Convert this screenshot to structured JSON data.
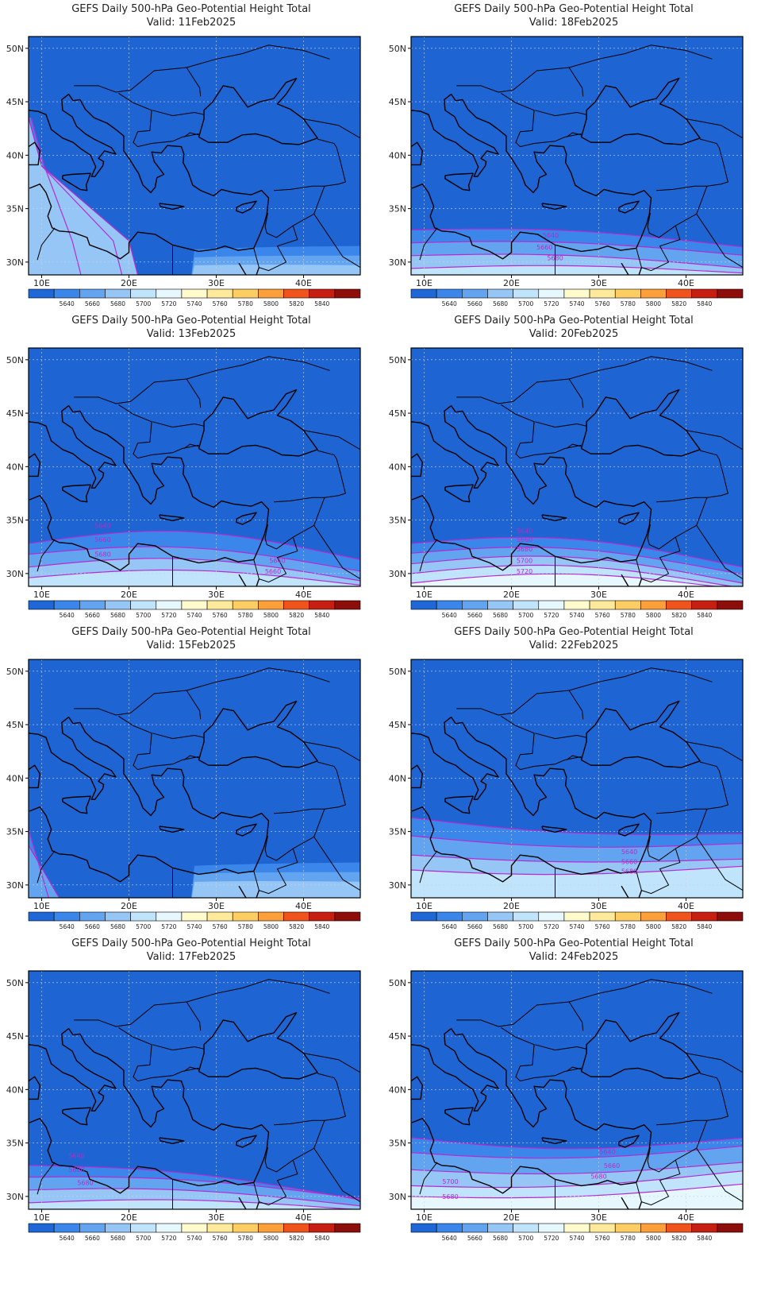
{
  "title": "GEFS Daily 500-hPa Geo-Potential Height Total",
  "valid_prefix": "Valid:",
  "lat_labels": [
    "50N",
    "45N",
    "40N",
    "35N",
    "30N"
  ],
  "lon_labels": [
    "10E",
    "20E",
    "30E",
    "40E"
  ],
  "colorbar_labels": [
    "5640",
    "5660",
    "5680",
    "5700",
    "5720",
    "5740",
    "5760",
    "5780",
    "5800",
    "5820",
    "5840"
  ],
  "colorbar_colors": [
    "#1f66d6",
    "#3a86ea",
    "#62a4ef",
    "#96c6f6",
    "#bfe4fb",
    "#e6f7fd",
    "#fffbcc",
    "#ffe99a",
    "#ffce63",
    "#ff9f3a",
    "#f0531c",
    "#c61e10",
    "#8c0d09"
  ],
  "map_colors": {
    "sea_fill": "#1e64d2",
    "contour_line": "#b62bd0",
    "coast_line": "#000000",
    "label_color": "#b32dc9"
  },
  "panels": [
    {
      "valid_date": "11Feb2025",
      "contours": [],
      "contour_labels": []
    },
    {
      "valid_date": "18Feb2025",
      "contours": [],
      "contour_labels": [
        "5640",
        "5660",
        "5680"
      ]
    },
    {
      "valid_date": "13Feb2025",
      "contours": [],
      "contour_labels": [
        "5640",
        "5660",
        "5680",
        "5640",
        "5660"
      ]
    },
    {
      "valid_date": "20Feb2025",
      "contours": [],
      "contour_labels": [
        "5640",
        "5660",
        "5680",
        "5700",
        "5720"
      ]
    },
    {
      "valid_date": "15Feb2025",
      "contours": [],
      "contour_labels": []
    },
    {
      "valid_date": "22Feb2025",
      "contours": [],
      "contour_labels": [
        "5640",
        "5660",
        "5680"
      ]
    },
    {
      "valid_date": "17Feb2025",
      "contours": [],
      "contour_labels": [
        "5640",
        "5660",
        "5680"
      ]
    },
    {
      "valid_date": "24Feb2025",
      "contours": [],
      "contour_labels": [
        "5640",
        "5660",
        "5680",
        "5700",
        "5680"
      ]
    }
  ]
}
